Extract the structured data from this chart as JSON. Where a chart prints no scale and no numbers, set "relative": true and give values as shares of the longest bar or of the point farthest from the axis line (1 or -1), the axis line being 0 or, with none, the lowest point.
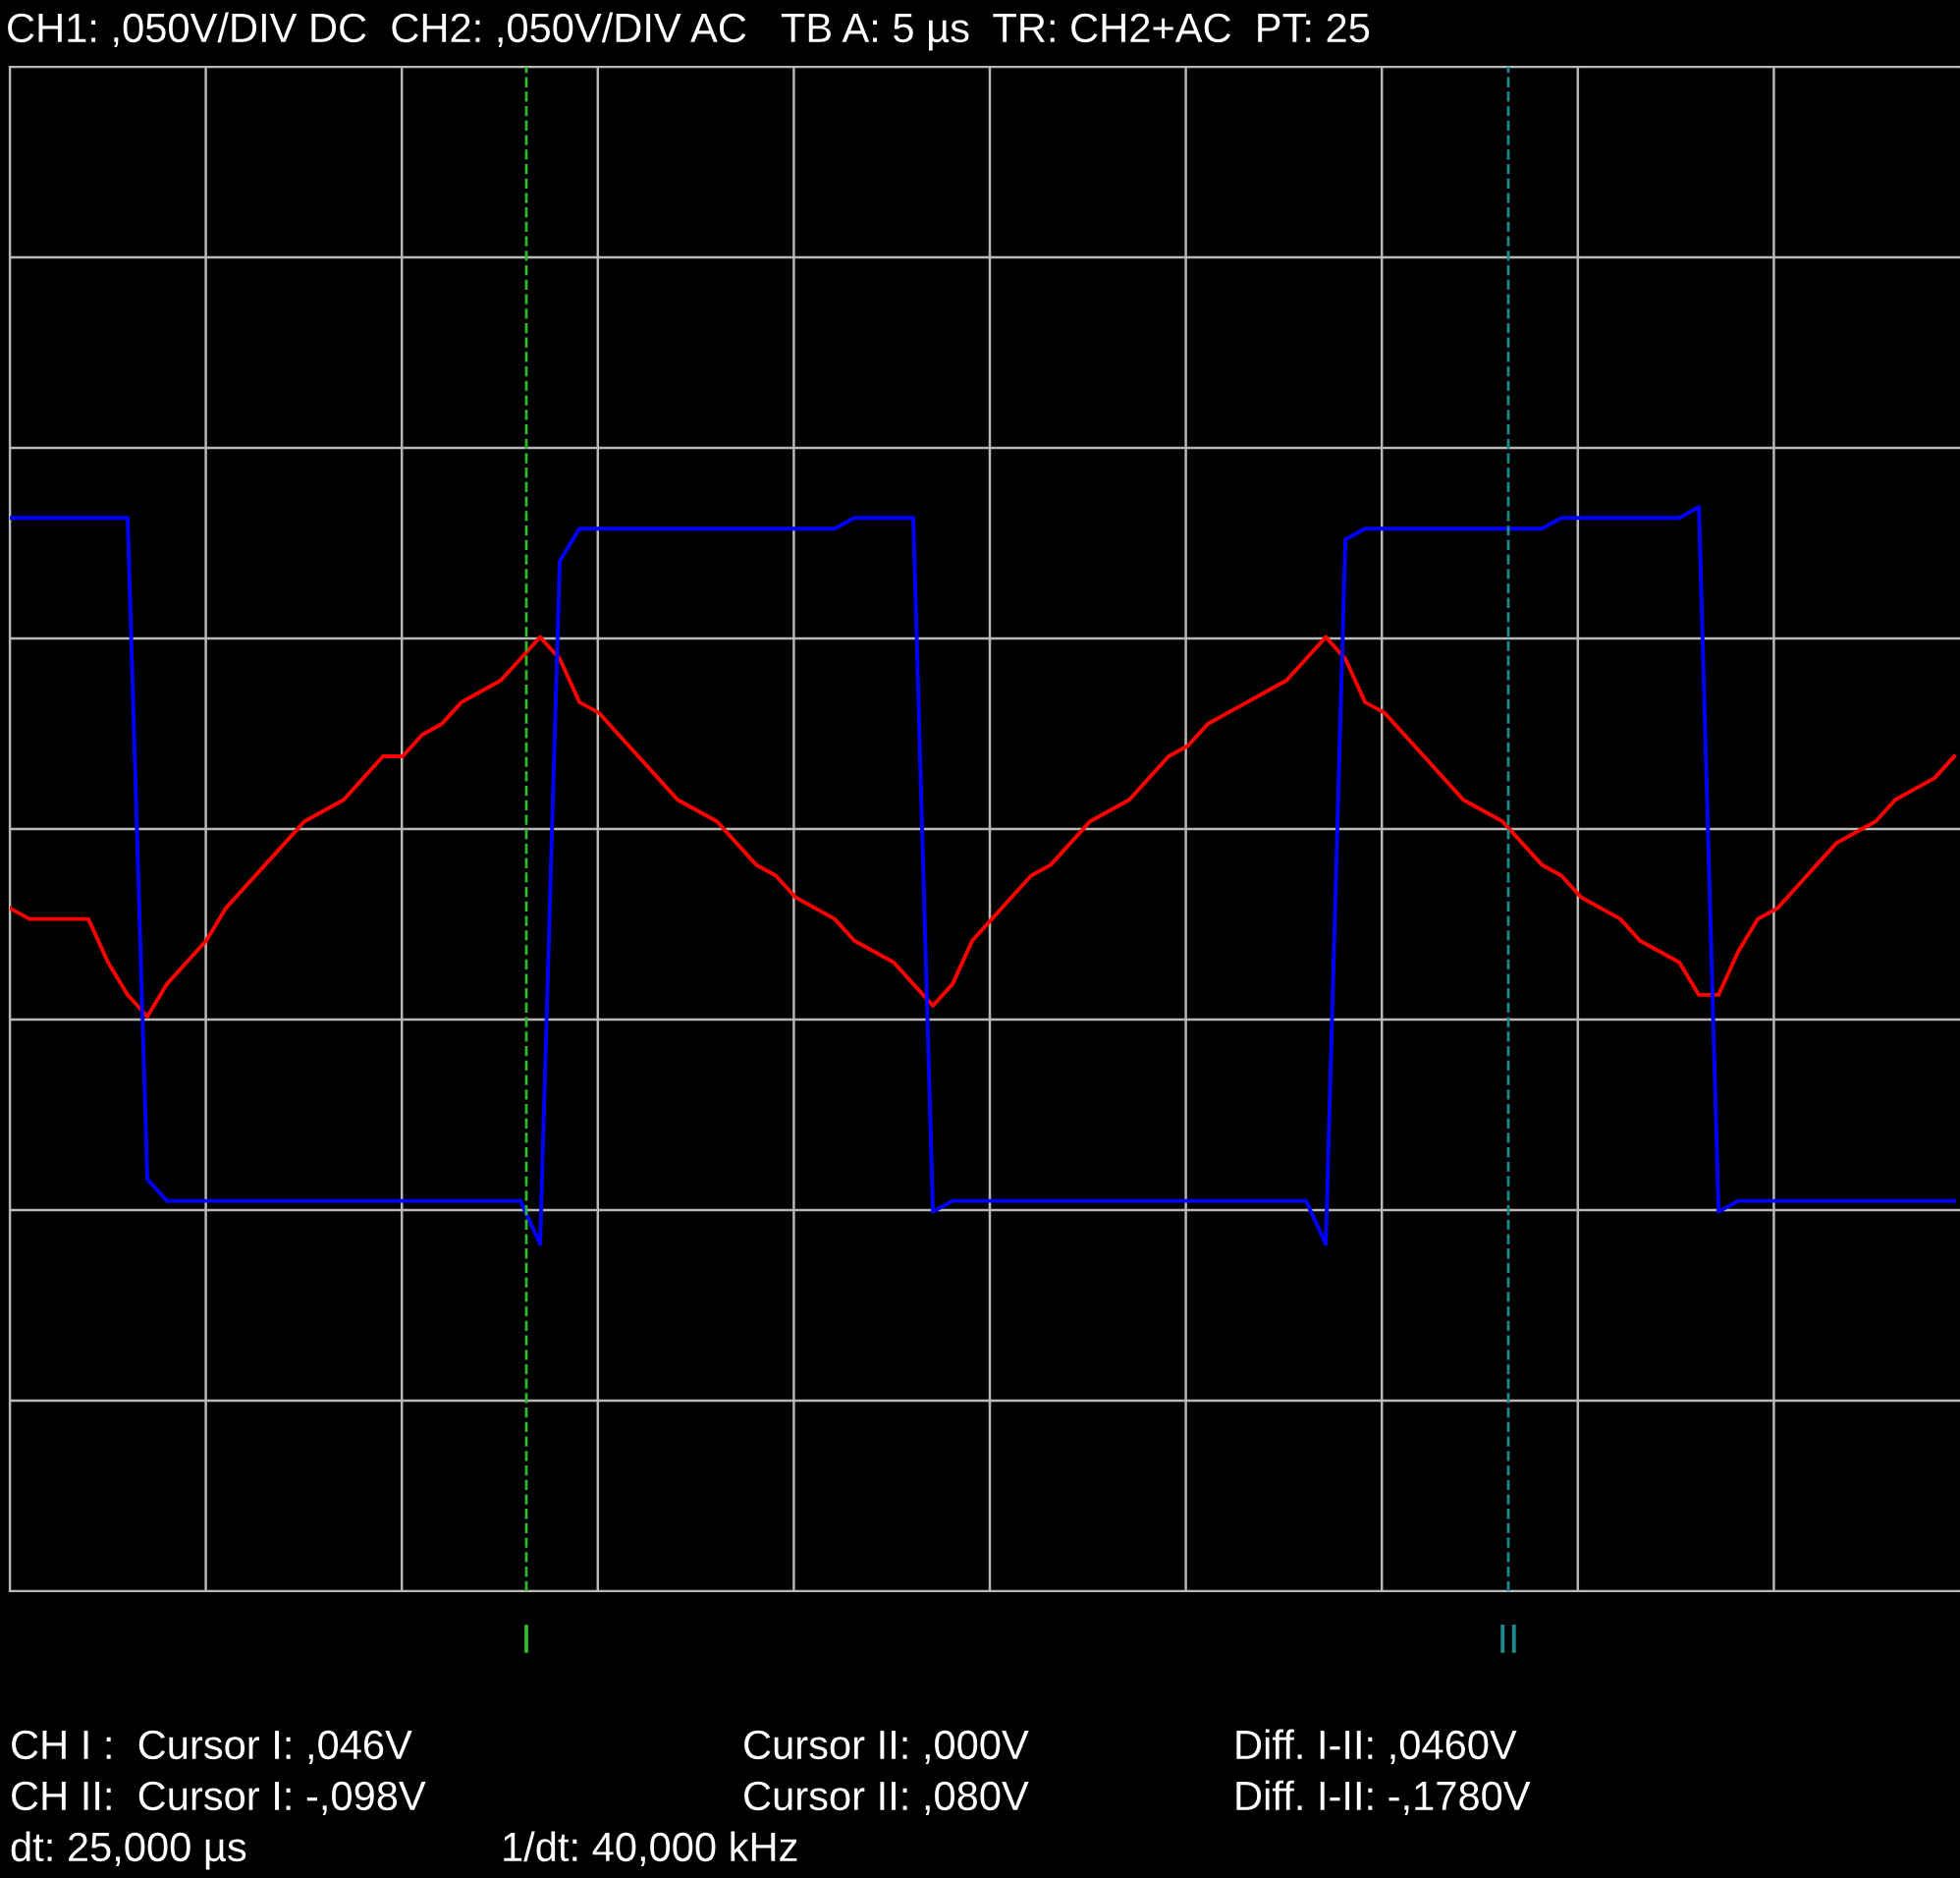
{
  "chart_data": {
    "type": "line",
    "title": "CH1: ,050V/DIV DC  CH2: ,050V/DIV AC   TB A: 5 µs  TR: CH2+AC  PT: 25",
    "relative": true,
    "grid": true,
    "legend": false,
    "line_style": "solid",
    "marker": "none",
    "categories": [
      null,
      null,
      null,
      null,
      null,
      null,
      null,
      null,
      null,
      null,
      null,
      null,
      null,
      null,
      null,
      null,
      null,
      null,
      null,
      null,
      null,
      null,
      null,
      null,
      null,
      null,
      null,
      null,
      null,
      null,
      null,
      null,
      null,
      null,
      null,
      null,
      null,
      null,
      null,
      null,
      null,
      null,
      null,
      null,
      null,
      null,
      null,
      null,
      null,
      null,
      null,
      null,
      null,
      null,
      null,
      null,
      null,
      null,
      null,
      null,
      null,
      null,
      null,
      null,
      null,
      null,
      null,
      null,
      null,
      null,
      null,
      null,
      null,
      null,
      null,
      null,
      null,
      null,
      null,
      null,
      null,
      null,
      null,
      null,
      null,
      null,
      null,
      null,
      null,
      null,
      null,
      null,
      null,
      null,
      null,
      null,
      null,
      null,
      null,
      null
    ],
    "series": [
      {
        "color": "#ff0000",
        "values": [
          0.63,
          0.62,
          0.62,
          0.62,
          0.62,
          0.58,
          0.55,
          0.53,
          0.56,
          0.58,
          0.6,
          0.63,
          0.65,
          0.67,
          0.69,
          0.71,
          0.72,
          0.73,
          0.75,
          0.77,
          0.77,
          0.79,
          0.8,
          0.82,
          0.83,
          0.84,
          0.86,
          0.88,
          0.86,
          0.82,
          0.81,
          0.79,
          0.77,
          0.75,
          0.73,
          0.72,
          0.71,
          0.69,
          0.67,
          0.66,
          0.64,
          0.63,
          0.62,
          0.6,
          0.59,
          0.58,
          0.56,
          0.54,
          0.56,
          0.6,
          0.62,
          0.64,
          0.66,
          0.67,
          0.69,
          0.71,
          0.72,
          0.73,
          0.75,
          0.77,
          0.78,
          0.8,
          0.81,
          0.82,
          0.83,
          0.84,
          0.86,
          0.88,
          0.86,
          0.82,
          0.81,
          0.79,
          0.77,
          0.75,
          0.73,
          0.72,
          0.71,
          0.69,
          0.67,
          0.66,
          0.64,
          0.63,
          0.62,
          0.6,
          0.59,
          0.58,
          0.55,
          0.55,
          0.59,
          0.62,
          0.63,
          0.65,
          0.67,
          0.69,
          0.7,
          0.71,
          0.73,
          0.74,
          0.75,
          0.77
        ]
      },
      {
        "color": "#0000ff",
        "values": [
          0.99,
          0.99,
          0.99,
          0.99,
          0.99,
          0.99,
          0.99,
          0.38,
          0.36,
          0.36,
          0.36,
          0.36,
          0.36,
          0.36,
          0.36,
          0.36,
          0.36,
          0.36,
          0.36,
          0.36,
          0.36,
          0.36,
          0.36,
          0.36,
          0.36,
          0.36,
          0.36,
          0.32,
          0.95,
          0.98,
          0.98,
          0.98,
          0.98,
          0.98,
          0.98,
          0.98,
          0.98,
          0.98,
          0.98,
          0.98,
          0.98,
          0.98,
          0.98,
          0.99,
          0.99,
          0.99,
          0.99,
          0.35,
          0.36,
          0.36,
          0.36,
          0.36,
          0.36,
          0.36,
          0.36,
          0.36,
          0.36,
          0.36,
          0.36,
          0.36,
          0.36,
          0.36,
          0.36,
          0.36,
          0.36,
          0.36,
          0.36,
          0.32,
          0.97,
          0.98,
          0.98,
          0.98,
          0.98,
          0.98,
          0.98,
          0.98,
          0.98,
          0.98,
          0.98,
          0.99,
          0.99,
          0.99,
          0.99,
          0.99,
          0.99,
          0.99,
          1,
          0.35,
          0.36,
          0.36,
          0.36,
          0.36,
          0.36,
          0.36,
          0.36,
          0.36,
          0.36,
          0.36,
          0.36,
          0.36
        ]
      }
    ],
    "annotations": [
      "CH I :  Cursor I: ,046V",
      "Cursor II: ,000V",
      "Diff. I-II: ,0460V",
      "CH II:  Cursor I: -,098V",
      "Cursor II: ,080V",
      "Diff. I-II: -,1780V",
      "dt: 25,000 µs",
      "1/dt: 40,000 kHz",
      "I",
      "II"
    ]
  }
}
